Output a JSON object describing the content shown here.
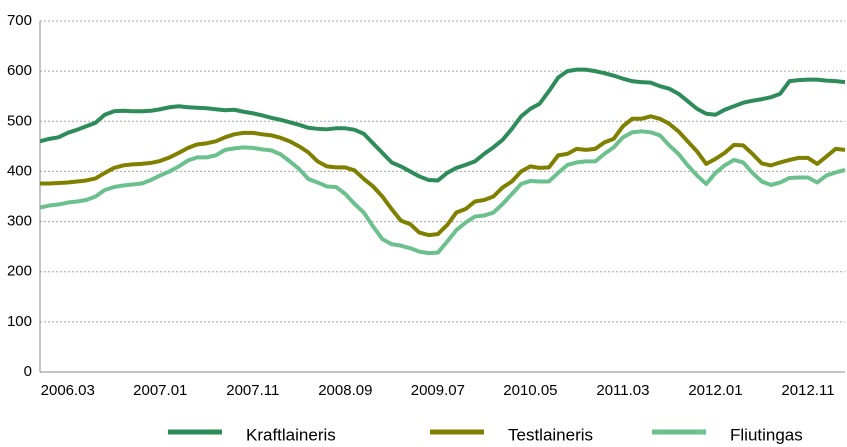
{
  "chart_data": {
    "type": "line",
    "categories": [
      null,
      null,
      null,
      "2006.03",
      null,
      null,
      null,
      null,
      null,
      null,
      null,
      null,
      null,
      "2007.01",
      null,
      null,
      null,
      null,
      null,
      null,
      null,
      null,
      null,
      "2007.11",
      null,
      null,
      null,
      null,
      null,
      null,
      null,
      null,
      null,
      "2008.09",
      null,
      null,
      null,
      null,
      null,
      null,
      null,
      null,
      null,
      "2009.07",
      null,
      null,
      null,
      null,
      null,
      null,
      null,
      null,
      null,
      "2010.05",
      null,
      null,
      null,
      null,
      null,
      null,
      null,
      null,
      null,
      "2011.03",
      null,
      null,
      null,
      null,
      null,
      null,
      null,
      null,
      null,
      "2012.01",
      null,
      null,
      null,
      null,
      null,
      null,
      null,
      null,
      null,
      "2012.11",
      null,
      null,
      null,
      null
    ],
    "series": [
      {
        "name": "Kraftlaineris",
        "color": "#2e8b5a",
        "values": [
          460,
          465,
          468,
          477,
          483,
          490,
          497,
          513,
          520,
          521,
          520,
          520,
          521,
          524,
          528,
          530,
          528,
          527,
          526,
          524,
          522,
          523,
          519,
          516,
          512,
          507,
          503,
          498,
          493,
          487,
          485,
          484,
          486,
          486,
          483,
          475,
          456,
          437,
          418,
          410,
          400,
          390,
          383,
          382,
          397,
          407,
          413,
          420,
          435,
          448,
          463,
          485,
          510,
          525,
          535,
          560,
          587,
          600,
          603,
          603,
          600,
          596,
          591,
          585,
          580,
          578,
          577,
          570,
          565,
          555,
          540,
          525,
          515,
          513,
          523,
          530,
          537,
          541,
          544,
          548,
          555,
          580,
          582,
          583,
          583,
          581,
          580,
          578
        ]
      },
      {
        "name": "Testlaineris",
        "color": "#7f7f00",
        "values": [
          376,
          376,
          377,
          378,
          380,
          382,
          386,
          397,
          407,
          412,
          414,
          415,
          417,
          421,
          428,
          437,
          447,
          454,
          456,
          460,
          468,
          474,
          477,
          477,
          474,
          472,
          467,
          460,
          450,
          438,
          420,
          410,
          408,
          408,
          402,
          385,
          370,
          350,
          325,
          302,
          295,
          278,
          273,
          275,
          293,
          318,
          325,
          340,
          343,
          350,
          368,
          380,
          400,
          410,
          407,
          408,
          432,
          435,
          445,
          443,
          445,
          458,
          465,
          490,
          505,
          505,
          510,
          505,
          495,
          480,
          460,
          440,
          415,
          425,
          437,
          453,
          452,
          435,
          416,
          412,
          418,
          423,
          427,
          427,
          415,
          430,
          445,
          443
        ]
      },
      {
        "name": "Fliutingas",
        "color": "#6cc08e",
        "values": [
          328,
          332,
          334,
          338,
          340,
          343,
          350,
          363,
          369,
          372,
          374,
          376,
          383,
          392,
          400,
          410,
          422,
          428,
          428,
          432,
          443,
          446,
          448,
          447,
          444,
          442,
          434,
          420,
          405,
          385,
          378,
          370,
          369,
          355,
          335,
          318,
          290,
          265,
          255,
          252,
          247,
          240,
          237,
          238,
          260,
          283,
          298,
          310,
          312,
          318,
          335,
          355,
          375,
          381,
          380,
          380,
          397,
          413,
          418,
          420,
          420,
          435,
          448,
          468,
          478,
          480,
          478,
          472,
          452,
          435,
          412,
          392,
          375,
          397,
          412,
          423,
          418,
          397,
          380,
          373,
          378,
          387,
          388,
          388,
          378,
          392,
          398,
          403
        ]
      }
    ],
    "ylim": [
      0,
      700
    ],
    "yticks": [
      0,
      100,
      200,
      300,
      400,
      500,
      600,
      700
    ],
    "grid": true,
    "legend": "bottom"
  }
}
